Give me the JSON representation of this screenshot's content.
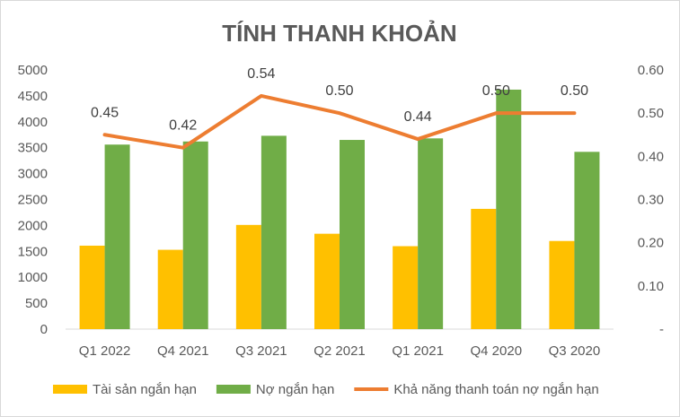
{
  "chart_data": {
    "type": "bar",
    "title": "TÍNH THANH KHOẢN",
    "categories": [
      "Q1 2022",
      "Q4 2021",
      "Q3 2021",
      "Q2 2021",
      "Q1 2021",
      "Q4 2020",
      "Q3 2020"
    ],
    "series": [
      {
        "name": "Tài sản ngắn hạn",
        "kind": "bar",
        "axis": "left",
        "color": "#FFC000",
        "values": [
          1610,
          1530,
          2010,
          1840,
          1600,
          2320,
          1700
        ]
      },
      {
        "name": "Nợ ngắn hạn",
        "kind": "bar",
        "axis": "left",
        "color": "#70AD47",
        "values": [
          3560,
          3620,
          3730,
          3650,
          3680,
          4620,
          3420
        ]
      },
      {
        "name": "Khả năng thanh toán nợ ngắn hạn",
        "kind": "line",
        "axis": "right",
        "color": "#ED7D31",
        "values": [
          0.45,
          0.42,
          0.54,
          0.5,
          0.44,
          0.5,
          0.5
        ],
        "labels": [
          "0.45",
          "0.42",
          "0.54",
          "0.50",
          "0.44",
          "0.50",
          "0.50"
        ]
      }
    ],
    "y_left": {
      "min": 0,
      "max": 5000,
      "ticks": [
        "0",
        "500",
        "1000",
        "1500",
        "2000",
        "2500",
        "3000",
        "3500",
        "4000",
        "4500",
        "5000"
      ]
    },
    "y_right": {
      "min": 0,
      "max": 0.6,
      "ticks": [
        "-",
        "0.10",
        "0.20",
        "0.30",
        "0.40",
        "0.50",
        "0.60"
      ]
    },
    "grid": false,
    "legend": "bottom"
  }
}
